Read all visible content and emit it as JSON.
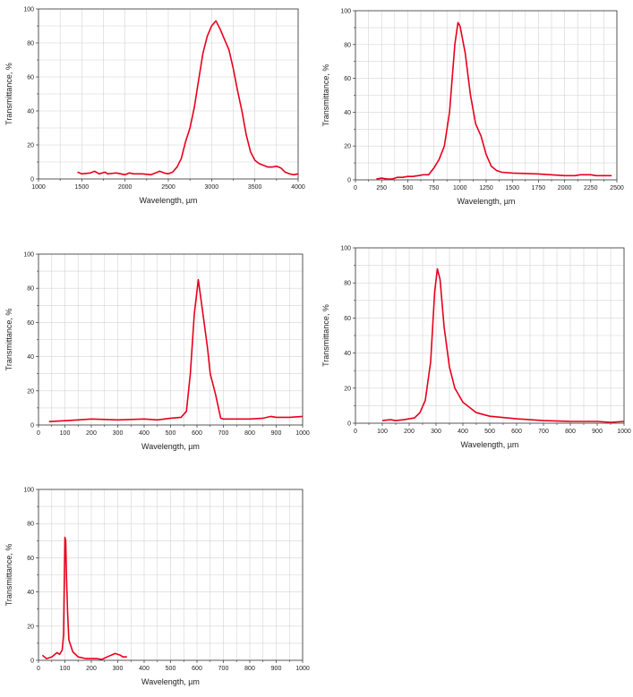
{
  "colors": {
    "line": "#e8001c",
    "grid": "#d4d4d4",
    "axis": "#333333"
  },
  "chart_data": [
    {
      "type": "line",
      "xlabel": "Wavelength, µm",
      "ylabel": "Transmittance, %",
      "xlim": [
        1000,
        4000
      ],
      "ylim": [
        0,
        100
      ],
      "grid": true,
      "xticks": [
        "1000",
        "1500",
        "2000",
        "2500",
        "3000",
        "3500",
        "4000"
      ],
      "yticks": [
        "0",
        "20",
        "40",
        "60",
        "80",
        "100"
      ],
      "series": [
        {
          "name": "transmittance",
          "points": [
            [
              1450,
              4
            ],
            [
              1500,
              3
            ],
            [
              1600,
              3.5
            ],
            [
              1650,
              4.5
            ],
            [
              1700,
              3
            ],
            [
              1770,
              4
            ],
            [
              1800,
              3
            ],
            [
              1900,
              3.5
            ],
            [
              2000,
              2.5
            ],
            [
              2050,
              3.5
            ],
            [
              2100,
              3
            ],
            [
              2200,
              3
            ],
            [
              2300,
              2.5
            ],
            [
              2400,
              4.5
            ],
            [
              2450,
              3.5
            ],
            [
              2500,
              3
            ],
            [
              2550,
              4
            ],
            [
              2600,
              7
            ],
            [
              2650,
              12
            ],
            [
              2700,
              22
            ],
            [
              2750,
              30
            ],
            [
              2800,
              42
            ],
            [
              2850,
              58
            ],
            [
              2900,
              74
            ],
            [
              2950,
              84
            ],
            [
              3000,
              90
            ],
            [
              3050,
              93
            ],
            [
              3100,
              88
            ],
            [
              3150,
              82
            ],
            [
              3200,
              76
            ],
            [
              3250,
              65
            ],
            [
              3300,
              52
            ],
            [
              3350,
              40
            ],
            [
              3400,
              26
            ],
            [
              3450,
              16
            ],
            [
              3500,
              11
            ],
            [
              3550,
              9
            ],
            [
              3600,
              8
            ],
            [
              3650,
              7
            ],
            [
              3700,
              7
            ],
            [
              3750,
              7.5
            ],
            [
              3800,
              6.5
            ],
            [
              3850,
              4
            ],
            [
              3900,
              3
            ],
            [
              3950,
              2.5
            ],
            [
              4000,
              3
            ]
          ]
        }
      ]
    },
    {
      "type": "line",
      "xlabel": "Wavelength, µm",
      "ylabel": "Transmittance, %",
      "xlim": [
        0,
        2500
      ],
      "ylim": [
        0,
        100
      ],
      "grid": true,
      "xticks": [
        "0",
        "250",
        "500",
        "750",
        "1000",
        "1250",
        "1500",
        "1750",
        "2000",
        "2250",
        "2500"
      ],
      "yticks": [
        "0",
        "20",
        "40",
        "60",
        "80",
        "100"
      ],
      "series": [
        {
          "name": "transmittance",
          "points": [
            [
              200,
              0.5
            ],
            [
              250,
              1
            ],
            [
              300,
              0.5
            ],
            [
              350,
              0.5
            ],
            [
              400,
              1.5
            ],
            [
              450,
              1.5
            ],
            [
              500,
              2
            ],
            [
              550,
              2
            ],
            [
              600,
              2.5
            ],
            [
              650,
              3
            ],
            [
              700,
              3
            ],
            [
              750,
              7
            ],
            [
              800,
              12
            ],
            [
              850,
              20
            ],
            [
              900,
              40
            ],
            [
              950,
              80
            ],
            [
              980,
              93
            ],
            [
              1000,
              91
            ],
            [
              1050,
              75
            ],
            [
              1080,
              60
            ],
            [
              1100,
              50
            ],
            [
              1150,
              33
            ],
            [
              1200,
              26
            ],
            [
              1250,
              15
            ],
            [
              1300,
              8
            ],
            [
              1350,
              5.5
            ],
            [
              1400,
              4.5
            ],
            [
              1500,
              4
            ],
            [
              1750,
              3.5
            ],
            [
              2000,
              2.5
            ],
            [
              2100,
              2.5
            ],
            [
              2150,
              3
            ],
            [
              2250,
              3
            ],
            [
              2300,
              2.5
            ],
            [
              2450,
              2.5
            ]
          ]
        }
      ]
    },
    {
      "type": "line",
      "xlabel": "Wavelength, µm",
      "ylabel": "Transmittance, %",
      "xlim": [
        0,
        1000
      ],
      "ylim": [
        0,
        100
      ],
      "grid": true,
      "xticks": [
        "0",
        "100",
        "200",
        "300",
        "400",
        "500",
        "600",
        "700",
        "800",
        "900",
        "1000"
      ],
      "yticks": [
        "0",
        "20",
        "40",
        "60",
        "80",
        "100"
      ],
      "series": [
        {
          "name": "transmittance",
          "points": [
            [
              40,
              2
            ],
            [
              100,
              2.5
            ],
            [
              150,
              3
            ],
            [
              200,
              3.5
            ],
            [
              300,
              3
            ],
            [
              400,
              3.5
            ],
            [
              450,
              3
            ],
            [
              500,
              4
            ],
            [
              540,
              4.5
            ],
            [
              560,
              8
            ],
            [
              575,
              30
            ],
            [
              590,
              65
            ],
            [
              605,
              85
            ],
            [
              620,
              68
            ],
            [
              640,
              45
            ],
            [
              650,
              30
            ],
            [
              670,
              18
            ],
            [
              690,
              4
            ],
            [
              700,
              3.5
            ],
            [
              750,
              3.5
            ],
            [
              800,
              3.5
            ],
            [
              850,
              4
            ],
            [
              880,
              5
            ],
            [
              900,
              4.5
            ],
            [
              950,
              4.5
            ],
            [
              1000,
              5
            ]
          ]
        }
      ]
    },
    {
      "type": "line",
      "xlabel": "Wavelength, µm",
      "ylabel": "Transmittance, %",
      "xlim": [
        0,
        1000
      ],
      "ylim": [
        0,
        100
      ],
      "grid": true,
      "xticks": [
        "0",
        "100",
        "200",
        "300",
        "400",
        "500",
        "600",
        "700",
        "800",
        "900",
        "1000"
      ],
      "yticks": [
        "0",
        "20",
        "40",
        "60",
        "80",
        "100"
      ],
      "series": [
        {
          "name": "transmittance",
          "points": [
            [
              100,
              1.5
            ],
            [
              130,
              2
            ],
            [
              150,
              1.5
            ],
            [
              180,
              2
            ],
            [
              200,
              2.5
            ],
            [
              220,
              3
            ],
            [
              240,
              6
            ],
            [
              260,
              13
            ],
            [
              280,
              35
            ],
            [
              295,
              75
            ],
            [
              305,
              88
            ],
            [
              315,
              82
            ],
            [
              330,
              55
            ],
            [
              350,
              32
            ],
            [
              370,
              20
            ],
            [
              400,
              12
            ],
            [
              450,
              6
            ],
            [
              500,
              4
            ],
            [
              600,
              2.5
            ],
            [
              700,
              1.5
            ],
            [
              800,
              1
            ],
            [
              900,
              1
            ],
            [
              950,
              0.5
            ],
            [
              1000,
              1
            ]
          ]
        }
      ]
    },
    {
      "type": "line",
      "xlabel": "Wavelength, µm",
      "ylabel": "Transmittance, %",
      "xlim": [
        0,
        1000
      ],
      "ylim": [
        0,
        100
      ],
      "grid": true,
      "xticks": [
        "0",
        "100",
        "200",
        "300",
        "400",
        "500",
        "600",
        "700",
        "800",
        "900",
        "1000"
      ],
      "yticks": [
        "0",
        "20",
        "40",
        "60",
        "80",
        "100"
      ],
      "series": [
        {
          "name": "transmittance",
          "points": [
            [
              15,
              3
            ],
            [
              30,
              1
            ],
            [
              50,
              2
            ],
            [
              70,
              4.5
            ],
            [
              80,
              3.5
            ],
            [
              90,
              6
            ],
            [
              95,
              15
            ],
            [
              98,
              50
            ],
            [
              100,
              72
            ],
            [
              103,
              70
            ],
            [
              106,
              48
            ],
            [
              110,
              28
            ],
            [
              115,
              12
            ],
            [
              130,
              5
            ],
            [
              150,
              2
            ],
            [
              180,
              1
            ],
            [
              200,
              1
            ],
            [
              220,
              1
            ],
            [
              240,
              0.5
            ],
            [
              260,
              2
            ],
            [
              290,
              4
            ],
            [
              310,
              3
            ],
            [
              320,
              2
            ],
            [
              335,
              2
            ]
          ]
        }
      ]
    }
  ]
}
